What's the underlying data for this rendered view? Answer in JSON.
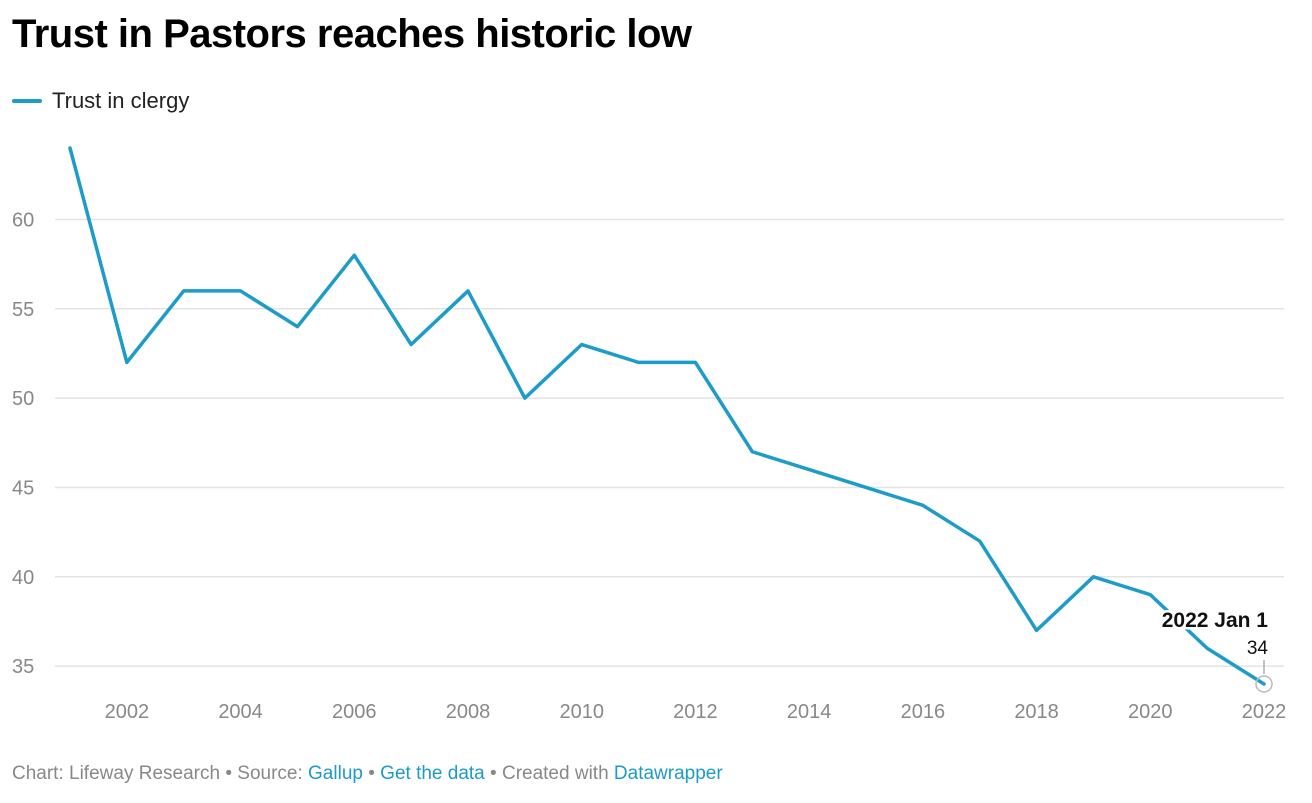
{
  "header": {
    "title": "Trust in Pastors reaches historic low"
  },
  "legend": {
    "label": "Trust in clergy",
    "color": "#1d9bc9"
  },
  "footer": {
    "chart_prefix": "Chart: Lifeway Research",
    "sep1": " • ",
    "source_prefix": "Source: ",
    "source_link": "Gallup",
    "sep2": " • ",
    "data_link": "Get the data",
    "sep3": " • ",
    "created_prefix": "Created with ",
    "created_link": "Datawrapper"
  },
  "annotation": {
    "date": "2022 Jan 1",
    "value": "34"
  },
  "chart_data": {
    "type": "line",
    "title": "Trust in Pastors reaches historic low",
    "xlabel": "",
    "ylabel": "",
    "x": [
      2001,
      2002,
      2003,
      2004,
      2005,
      2006,
      2007,
      2008,
      2009,
      2010,
      2011,
      2012,
      2013,
      2014,
      2015,
      2016,
      2017,
      2018,
      2019,
      2020,
      2021,
      2022
    ],
    "series": [
      {
        "name": "Trust in clergy",
        "color": "#1d9bc9",
        "values": [
          64,
          52,
          56,
          56,
          54,
          58,
          53,
          56,
          50,
          53,
          52,
          52,
          47,
          46,
          45,
          44,
          42,
          37,
          40,
          39,
          36,
          34
        ]
      }
    ],
    "xticks": [
      "2002",
      "2004",
      "2006",
      "2008",
      "2010",
      "2012",
      "2014",
      "2016",
      "2018",
      "2020",
      "2022"
    ],
    "yticks": [
      "35",
      "40",
      "45",
      "50",
      "55",
      "60"
    ],
    "xlim": [
      2001,
      2022
    ],
    "ylim": [
      34,
      64
    ],
    "grid": true,
    "legend_position": "top-left"
  }
}
